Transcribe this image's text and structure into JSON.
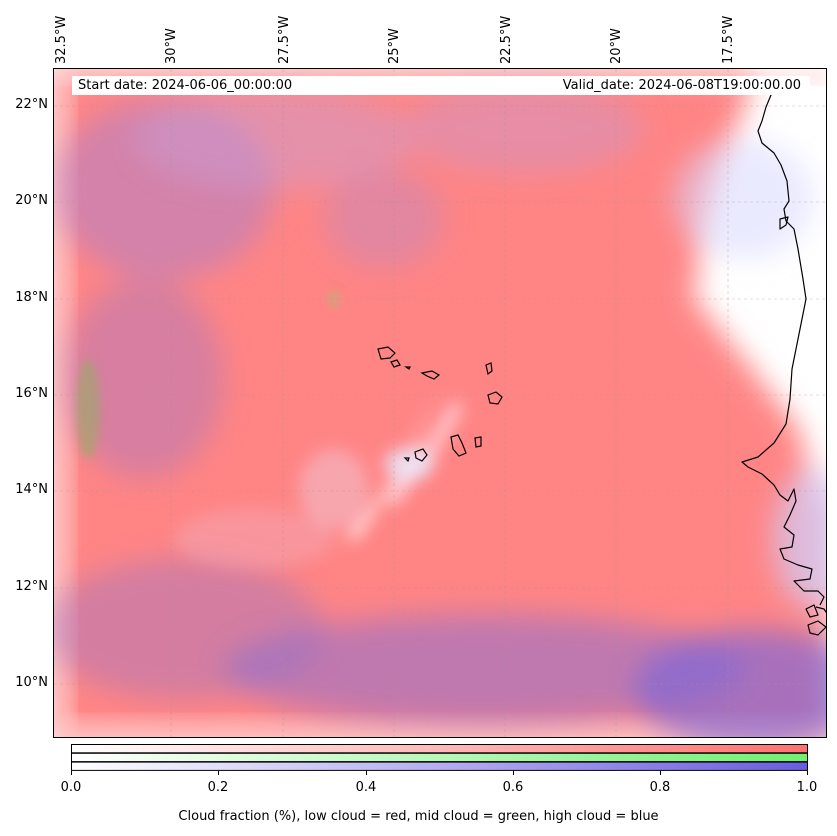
{
  "map": {
    "start_date": "Start date: 2024-06-06_00:00:00",
    "valid_date": "Valid_date: 2024-06-08T19:00:00.00",
    "lon_labels": [
      "32.5°W",
      "30°W",
      "27.5°W",
      "25°W",
      "22.5°W",
      "20°W",
      "17.5°W"
    ],
    "lat_labels": [
      "22°N",
      "20°N",
      "18°N",
      "16°N",
      "14°N",
      "12°N",
      "10°N"
    ],
    "lon_range": [
      -32.5,
      -15.25
    ],
    "lat_range": [
      8.9,
      22.75
    ],
    "colors": {
      "low_cloud": "#ff8080",
      "mid_cloud": "#80ff80",
      "high_cloud": "#8080ff",
      "coastline": "#000000"
    }
  },
  "colorbar": {
    "ticks": [
      "0.0",
      "0.2",
      "0.4",
      "0.6",
      "0.8",
      "1.0"
    ],
    "label": "Cloud fraction (%), low cloud = red, mid cloud = green, high cloud = blue",
    "bands": [
      "low cloud",
      "mid cloud",
      "high cloud"
    ]
  }
}
